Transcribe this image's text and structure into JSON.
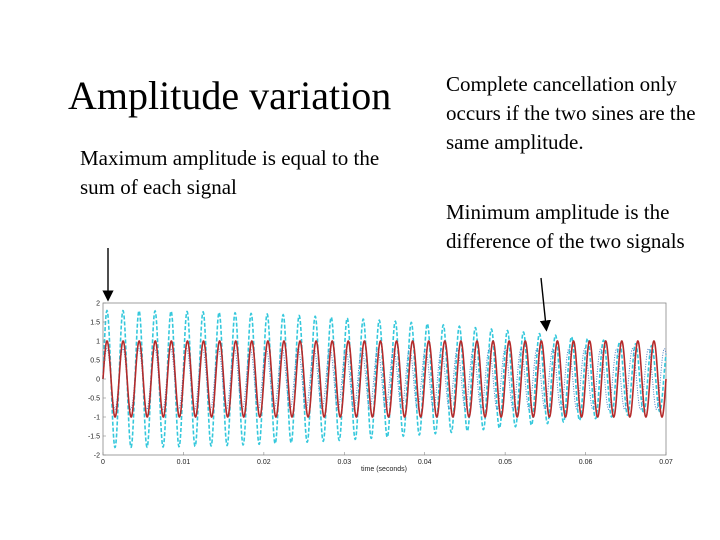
{
  "slide": {
    "title": "Amplitude variation",
    "left_note": "Maximum amplitude is equal to the sum of each signal",
    "right_note_1": "Complete cancellation only occurs if the two sines are the same amplitude.",
    "right_note_2": "Minimum amplitude is the difference of the two signals"
  },
  "chart_data": {
    "type": "line",
    "title": "",
    "xlabel": "time (seconds)",
    "ylabel": "",
    "xlim": [
      0,
      0.07
    ],
    "ylim": [
      -2,
      2
    ],
    "x_ticks": [
      0,
      0.01,
      0.02,
      0.03,
      0.04,
      0.05,
      0.06,
      0.07
    ],
    "x_tick_labels": [
      "0",
      "0.01",
      "0.02",
      "0.03",
      "0.04",
      "0.05",
      "0.06",
      "0.07"
    ],
    "y_ticks": [
      -2,
      -1.5,
      -1,
      -0.5,
      0,
      0.5,
      1,
      1.5,
      2
    ],
    "y_tick_labels": [
      "-2",
      "-1.5",
      "-1",
      "-0.5",
      "0",
      "0.5",
      "1",
      "1.5",
      "2"
    ],
    "grid": false,
    "series": [
      {
        "name": "",
        "style": "solid",
        "color": "#b52a2a",
        "amplitude": 1.0,
        "frequency_hz": 500
      },
      {
        "name": "",
        "style": "dotted",
        "color": "#4a7ec4",
        "amplitude": 0.8,
        "frequency_hz": 505
      },
      {
        "name": "",
        "style": "dashed",
        "color": "#35c8dc",
        "description": "sum of the two signals",
        "envelope_max": 1.8,
        "envelope_min": 0.2
      }
    ]
  }
}
